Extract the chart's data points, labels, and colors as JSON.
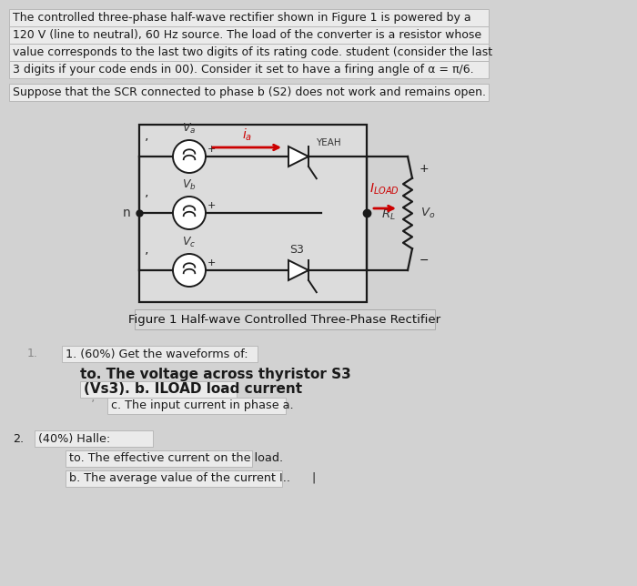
{
  "bg_color": "#d2d2d2",
  "box_color": "#ebebeb",
  "box_edge": "#b8b8b8",
  "wire_color": "#1a1a1a",
  "red_color": "#cc0000",
  "dark_text": "#1a1a1a",
  "para1": [
    "The controlled three-phase half-wave rectifier shown in Figure 1 is powered by a",
    "120 V (line to neutral), 60 Hz source. The load of the converter is a resistor whose",
    "value corresponds to the last two digits of its rating code. student (consider the last",
    "3 digits if your code ends in 00). Consider it set to have a firing angle of α = π/6."
  ],
  "para2": "Suppose that the SCR connected to phase b (S2) does not work and remains open.",
  "fig_caption": "Figure 1 Half-wave Controlled Three-Phase Rectifier",
  "q1_header": "1. (60%) Get the waveforms of:",
  "q1_line2": "to. The voltage across thyristor S3",
  "q1_line3": "(Vs3). b. ILOAD load current",
  "q1_line4": "c. The input current in phase a.",
  "q2_header": "(40%) Halle:",
  "q2_line1": "to. The effective current on the load.",
  "q2_line2": "b. The average value of the current I..      |"
}
